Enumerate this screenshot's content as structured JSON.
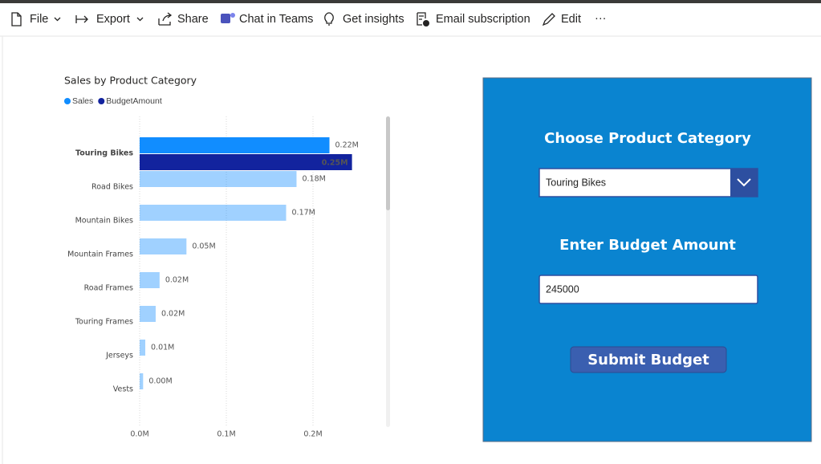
{
  "toolbar": {
    "items": [
      "File",
      "Export",
      "Share",
      "Chat in Teams",
      "Get insights",
      "Email subscription",
      "Edit",
      "···"
    ]
  },
  "chart_data": {
    "type": "bar",
    "title": "Sales by Product Category",
    "categories": [
      "Touring Bikes",
      "Road Bikes",
      "Mountain Bikes",
      "Mountain Frames",
      "Road Frames",
      "Touring Frames",
      "Jerseys",
      "Vests"
    ],
    "series": [
      {
        "name": "Sales",
        "color": "#118dff",
        "values": [
          0.219,
          0.181,
          0.169,
          0.054,
          0.023,
          0.0185,
          0.0065,
          0.004
        ],
        "value_labels": [
          "0.22M",
          "0.18M",
          "0.17M",
          "0.05M",
          "0.02M",
          "0.02M",
          "0.01M",
          "0.00M"
        ]
      },
      {
        "name": "BudgetAmount",
        "color": "#12239e",
        "values": [
          0.245,
          null,
          null,
          null,
          null,
          null,
          null,
          null
        ],
        "value_labels": [
          "0.25M",
          null,
          null,
          null,
          null,
          null,
          null,
          null
        ]
      }
    ],
    "highlight": "Touring Bikes",
    "xlim": [
      0,
      0.28
    ],
    "xticks": [
      {
        "value": 0,
        "label": "0.0M"
      },
      {
        "value": 0.1,
        "label": "0.1M"
      },
      {
        "value": 0.2,
        "label": "0.2M"
      }
    ],
    "grid": true,
    "legend": "top-left"
  },
  "panel": {
    "category_heading": "Choose Product Category",
    "category_value": "Touring Bikes",
    "budget_heading": "Enter Budget Amount",
    "budget_value": "245000",
    "button": "Submit Budget"
  }
}
